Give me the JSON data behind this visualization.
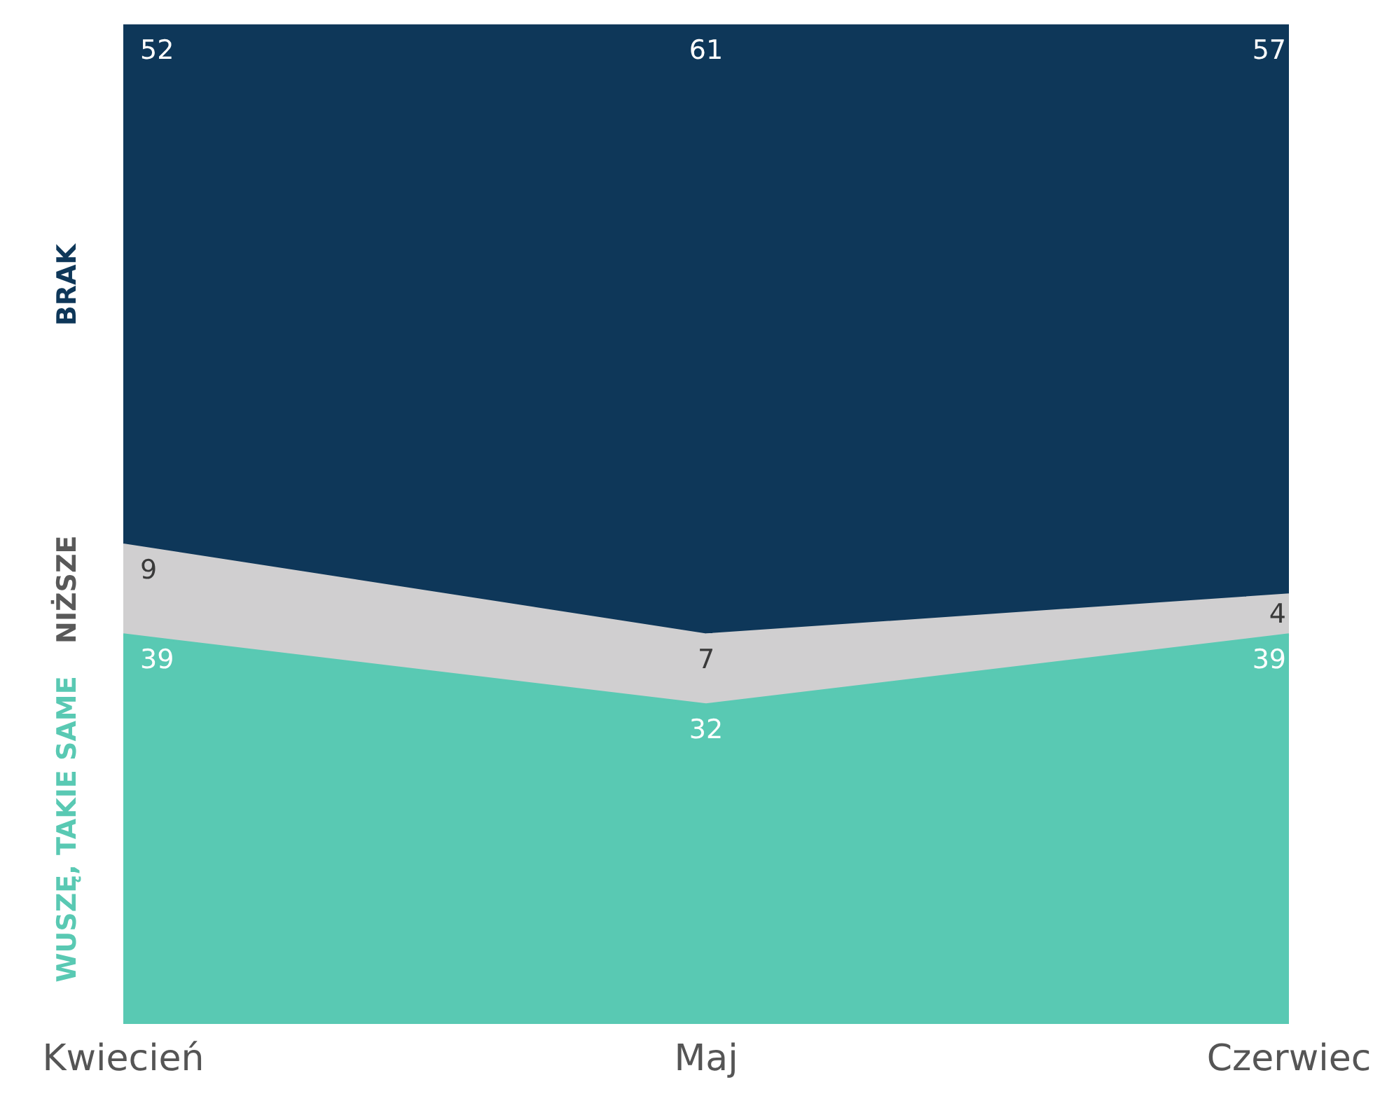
{
  "chart_data": {
    "type": "area",
    "stacked": true,
    "categories": [
      "Kwiecień",
      "Maj",
      "Czerwiec"
    ],
    "series": [
      {
        "name": "WUSZĘ, TAKIE SAME",
        "color": "#59c9b3",
        "values": [
          39,
          32,
          39
        ]
      },
      {
        "name": "NIŻSZE",
        "color": "#d0cfd0",
        "values": [
          9,
          7,
          4
        ]
      },
      {
        "name": "BRAK",
        "color": "#0e3759",
        "values": [
          52,
          61,
          57
        ]
      }
    ],
    "ylim": [
      0,
      100
    ],
    "data_labels": true,
    "legend": false,
    "grid": false,
    "tick_labels": "x"
  }
}
